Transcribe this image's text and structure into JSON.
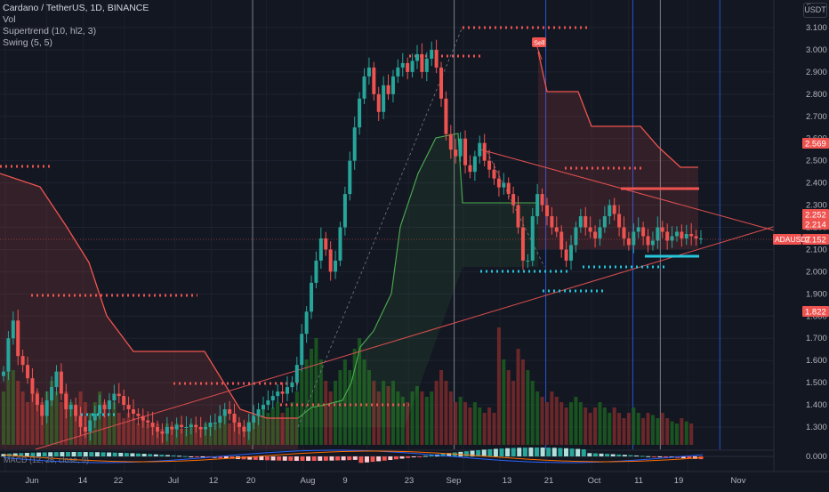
{
  "legend": {
    "symbol_line": "Cardano / TetherUS, 1D, BINANCE",
    "vol_line": "Vol",
    "supertrend_line": "Supertrend (10, hl2, 3)",
    "swing_line": "Swing (5, 5)",
    "macd_line": "MACD (12, 26, close, 9)"
  },
  "currency_badge": "USDT",
  "sell_label": "Sell",
  "current_symbol": "ADAUSDT",
  "colors": {
    "background": "#131722",
    "up": "#26a69a",
    "down": "#ef5350",
    "vol_up": "#1b5e20",
    "vol_down": "#7a2a2a",
    "supertrend_down": "#f0554f",
    "supertrend_up": "#4caf50",
    "swing_high": "#ef5350",
    "swing_low": "#26c6da",
    "trendline": "#e05050",
    "vline_grey": "#9598a1",
    "vline_blue": "#2962ff",
    "macd_line": "#2962ff",
    "signal_line": "#ff6d00"
  },
  "chart_data": {
    "type": "candlestick",
    "y_axis": {
      "min": 1.2,
      "max": 3.1,
      "ticks": [
        "3.100",
        "3.000",
        "2.900",
        "2.800",
        "2.700",
        "2.600",
        "2.500",
        "2.400",
        "2.300",
        "2.200",
        "2.100",
        "2.000",
        "1.900",
        "1.800",
        "1.700",
        "1.600",
        "1.500",
        "1.400",
        "1.300"
      ]
    },
    "x_axis": {
      "labels": [
        {
          "text": "Jun",
          "day": 0
        },
        {
          "text": "14",
          "day": 9
        },
        {
          "text": "22",
          "day": 17
        },
        {
          "text": "Jul",
          "day": 26
        },
        {
          "text": "12",
          "day": 37
        },
        {
          "text": "20",
          "day": 45
        },
        {
          "text": "Aug",
          "day": 57
        },
        {
          "text": "9",
          "day": 65
        },
        {
          "text": "23",
          "day": 79
        },
        {
          "text": "Sep",
          "day": 88
        },
        {
          "text": "13",
          "day": 100
        },
        {
          "text": "21",
          "day": 108
        },
        {
          "text": "Oct",
          "day": 118
        },
        {
          "text": "11",
          "day": 128
        },
        {
          "text": "19",
          "day": 136
        },
        {
          "text": "Nov",
          "day": 149
        }
      ]
    },
    "price_badges": [
      {
        "value": "2.569",
        "color": "#ef5350"
      },
      {
        "value": "2.252",
        "color": "#ef5350"
      },
      {
        "value": "2.214",
        "color": "#ef5350"
      },
      {
        "value": "2.152",
        "color": "#ef5350"
      },
      {
        "value": "1.822",
        "color": "#ef5350"
      }
    ],
    "macd_tick": "0.000",
    "close_series": [
      1.55,
      1.7,
      1.78,
      1.62,
      1.58,
      1.52,
      1.45,
      1.4,
      1.35,
      1.42,
      1.48,
      1.55,
      1.45,
      1.38,
      1.4,
      1.35,
      1.3,
      1.28,
      1.33,
      1.36,
      1.4,
      1.38,
      1.42,
      1.45,
      1.44,
      1.4,
      1.38,
      1.36,
      1.35,
      1.33,
      1.32,
      1.3,
      1.28,
      1.27,
      1.3,
      1.29,
      1.31,
      1.3,
      1.3,
      1.31,
      1.3,
      1.29,
      1.3,
      1.32,
      1.32,
      1.35,
      1.38,
      1.36,
      1.32,
      1.3,
      1.28,
      1.32,
      1.35,
      1.38,
      1.4,
      1.42,
      1.44,
      1.46,
      1.45,
      1.48,
      1.5,
      1.58,
      1.72,
      1.82,
      1.95,
      2.05,
      2.15,
      2.1,
      2.0,
      2.05,
      2.2,
      2.35,
      2.5,
      2.65,
      2.78,
      2.88,
      2.92,
      2.8,
      2.72,
      2.84,
      2.8,
      2.88,
      2.92,
      2.94,
      2.9,
      2.95,
      2.98,
      2.9,
      2.96,
      3.0,
      2.92,
      2.78,
      2.62,
      2.55,
      2.52,
      2.6,
      2.48,
      2.45,
      2.52,
      2.58,
      2.5,
      2.46,
      2.42,
      2.38,
      2.4,
      2.35,
      2.3,
      2.2,
      2.05,
      2.05,
      2.25,
      2.35,
      2.3,
      2.25,
      2.2,
      2.18,
      2.1,
      2.05,
      2.12,
      2.2,
      2.25,
      2.2,
      2.18,
      2.15,
      2.2,
      2.25,
      2.3,
      2.26,
      2.2,
      2.15,
      2.12,
      2.18,
      2.2,
      2.16,
      2.12,
      2.14,
      2.2,
      2.18,
      2.14,
      2.16,
      2.18,
      2.15,
      2.17,
      2.16,
      2.15,
      2.15
    ],
    "volume_series": [
      0.5,
      0.9,
      0.7,
      0.6,
      0.5,
      0.4,
      0.6,
      0.5,
      0.4,
      0.5,
      0.6,
      0.5,
      0.4,
      0.5,
      0.4,
      0.3,
      0.5,
      0.4,
      0.3,
      0.4,
      0.5,
      0.4,
      0.3,
      0.4,
      0.3,
      0.25,
      0.3,
      0.25,
      0.2,
      0.25,
      0.2,
      0.18,
      0.2,
      0.15,
      0.2,
      0.18,
      0.2,
      0.15,
      0.15,
      0.2,
      0.18,
      0.15,
      0.2,
      0.18,
      0.2,
      0.25,
      0.3,
      0.2,
      0.25,
      0.2,
      0.18,
      0.22,
      0.25,
      0.3,
      0.35,
      0.3,
      0.35,
      0.4,
      0.3,
      0.35,
      0.4,
      0.5,
      0.7,
      0.8,
      0.9,
      1.0,
      0.8,
      0.6,
      0.5,
      0.6,
      0.7,
      0.8,
      0.7,
      0.9,
      1.0,
      0.8,
      0.7,
      0.6,
      0.5,
      0.6,
      0.55,
      0.6,
      0.5,
      0.45,
      0.4,
      0.5,
      0.55,
      0.5,
      0.45,
      0.5,
      0.6,
      0.7,
      0.6,
      0.5,
      0.4,
      0.45,
      0.4,
      0.35,
      0.4,
      0.35,
      0.3,
      0.35,
      0.3,
      1.1,
      0.8,
      0.7,
      0.6,
      0.9,
      0.8,
      0.7,
      0.6,
      0.5,
      0.45,
      0.4,
      0.5,
      0.45,
      0.4,
      0.35,
      0.4,
      0.45,
      0.4,
      0.35,
      0.3,
      0.35,
      0.4,
      0.35,
      0.3,
      0.35,
      0.3,
      0.25,
      0.3,
      0.35,
      0.3,
      0.25,
      0.3,
      0.28,
      0.25,
      0.3,
      0.25,
      0.22,
      0.2,
      0.25,
      0.22,
      0.2
    ]
  }
}
